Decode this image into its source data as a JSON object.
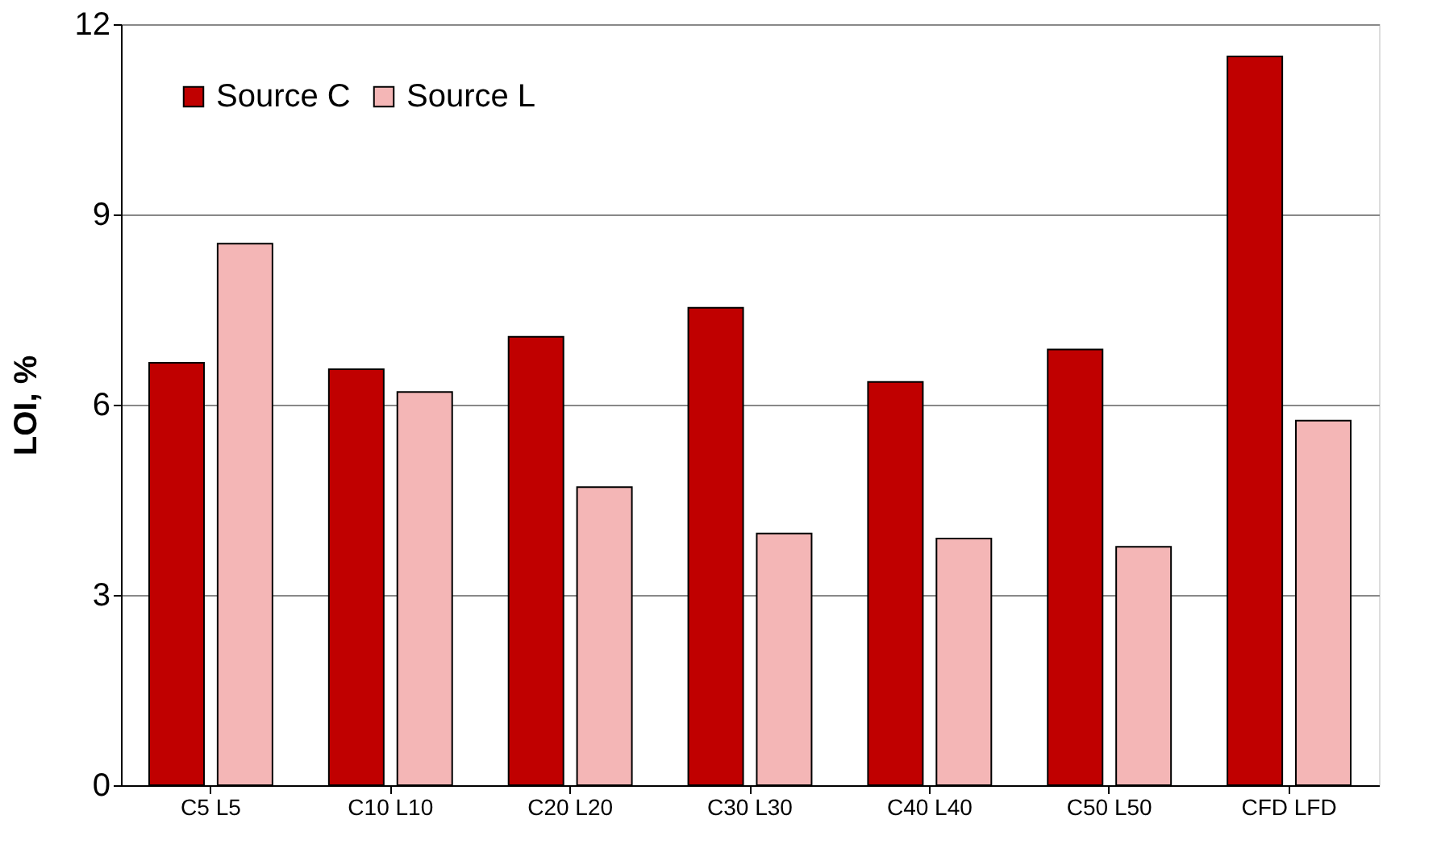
{
  "chart_data": {
    "type": "bar",
    "ylabel": "LOI, %",
    "categories": [
      "C5 L5",
      "C10 L10",
      "C20 L20",
      "C30 L30",
      "C40 L40",
      "C50 L50",
      "CFD LFD"
    ],
    "series": [
      {
        "name": "Source C",
        "color": "#c00000",
        "values": [
          6.66,
          6.56,
          7.07,
          7.53,
          6.36,
          6.87,
          11.49
        ]
      },
      {
        "name": "Source L",
        "color": "#f4b6b6",
        "values": [
          8.54,
          6.2,
          4.7,
          3.97,
          3.89,
          3.76,
          5.75
        ]
      }
    ],
    "ylim": [
      0,
      12
    ],
    "yticks": [
      0,
      3,
      6,
      9,
      12
    ],
    "grid": "y",
    "legend": "top left"
  }
}
